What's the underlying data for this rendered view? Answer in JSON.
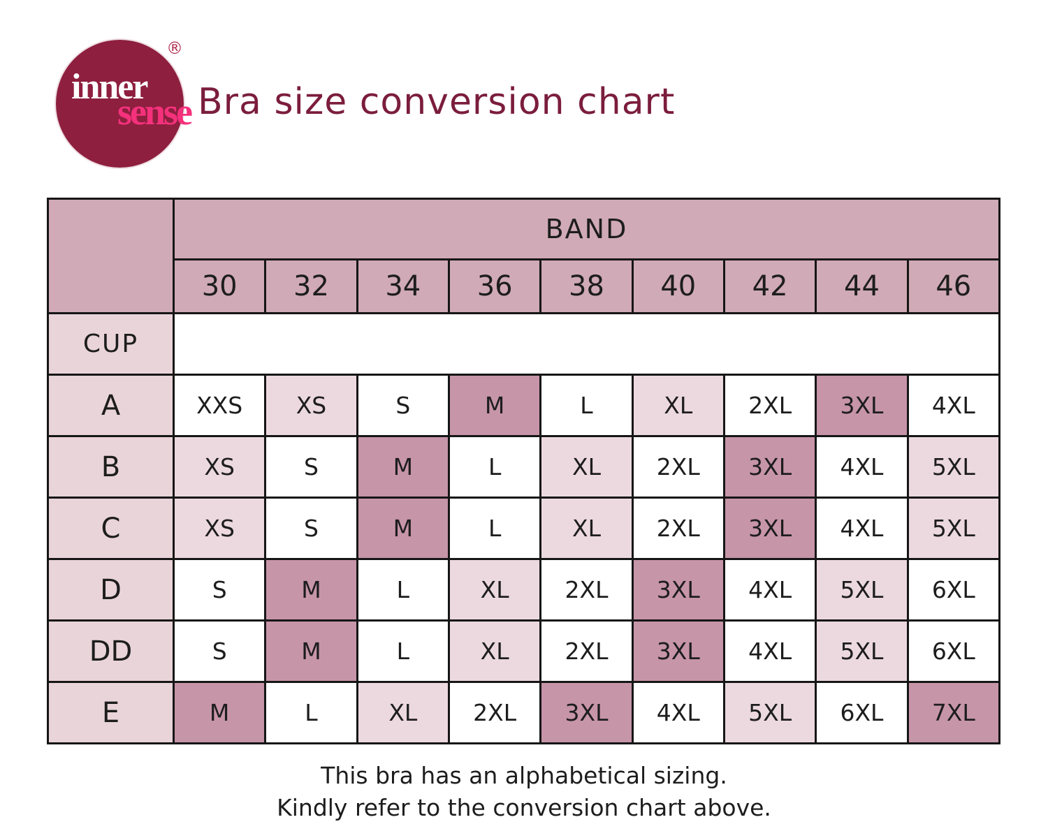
{
  "colors": {
    "header_pink": "#d0aab6",
    "dark_pink": "#c795a8",
    "light_pink": "#ecd9df",
    "lefthead_pink": "#e9d4da",
    "border_black": "#161616",
    "maroon": "#7b1d3c",
    "logo_burgundy": "#8e1f3f",
    "logo_pink": "#f5317c",
    "text_black": "#1d1d1d"
  },
  "logo": {
    "word_top": "inner",
    "word_bottom": "sense",
    "registered_mark": "®"
  },
  "header": {
    "title": "Bra size conversion chart"
  },
  "chart_data": {
    "type": "table",
    "title": "Bra size conversion chart",
    "band_header": "BAND",
    "cup_header": "CUP",
    "bands": [
      "30",
      "32",
      "34",
      "36",
      "38",
      "40",
      "42",
      "44",
      "46"
    ],
    "rows": [
      {
        "cup": "A",
        "cells": [
          {
            "v": "XXS",
            "shade": "white"
          },
          {
            "v": "XS",
            "shade": "light"
          },
          {
            "v": "S",
            "shade": "white"
          },
          {
            "v": "M",
            "shade": "dark"
          },
          {
            "v": "L",
            "shade": "white"
          },
          {
            "v": "XL",
            "shade": "light"
          },
          {
            "v": "2XL",
            "shade": "white"
          },
          {
            "v": "3XL",
            "shade": "dark"
          },
          {
            "v": "4XL",
            "shade": "white"
          }
        ]
      },
      {
        "cup": "B",
        "cells": [
          {
            "v": "XS",
            "shade": "light"
          },
          {
            "v": "S",
            "shade": "white"
          },
          {
            "v": "M",
            "shade": "dark"
          },
          {
            "v": "L",
            "shade": "white"
          },
          {
            "v": "XL",
            "shade": "light"
          },
          {
            "v": "2XL",
            "shade": "white"
          },
          {
            "v": "3XL",
            "shade": "dark"
          },
          {
            "v": "4XL",
            "shade": "white"
          },
          {
            "v": "5XL",
            "shade": "light"
          }
        ]
      },
      {
        "cup": "C",
        "cells": [
          {
            "v": "XS",
            "shade": "light"
          },
          {
            "v": "S",
            "shade": "white"
          },
          {
            "v": "M",
            "shade": "dark"
          },
          {
            "v": "L",
            "shade": "white"
          },
          {
            "v": "XL",
            "shade": "light"
          },
          {
            "v": "2XL",
            "shade": "white"
          },
          {
            "v": "3XL",
            "shade": "dark"
          },
          {
            "v": "4XL",
            "shade": "white"
          },
          {
            "v": "5XL",
            "shade": "light"
          }
        ]
      },
      {
        "cup": "D",
        "cells": [
          {
            "v": "S",
            "shade": "white"
          },
          {
            "v": "M",
            "shade": "dark"
          },
          {
            "v": "L",
            "shade": "white"
          },
          {
            "v": "XL",
            "shade": "light"
          },
          {
            "v": "2XL",
            "shade": "white"
          },
          {
            "v": "3XL",
            "shade": "dark"
          },
          {
            "v": "4XL",
            "shade": "white"
          },
          {
            "v": "5XL",
            "shade": "light"
          },
          {
            "v": "6XL",
            "shade": "white"
          }
        ]
      },
      {
        "cup": "DD",
        "cells": [
          {
            "v": "S",
            "shade": "white"
          },
          {
            "v": "M",
            "shade": "dark"
          },
          {
            "v": "L",
            "shade": "white"
          },
          {
            "v": "XL",
            "shade": "light"
          },
          {
            "v": "2XL",
            "shade": "white"
          },
          {
            "v": "3XL",
            "shade": "dark"
          },
          {
            "v": "4XL",
            "shade": "white"
          },
          {
            "v": "5XL",
            "shade": "light"
          },
          {
            "v": "6XL",
            "shade": "white"
          }
        ]
      },
      {
        "cup": "E",
        "cells": [
          {
            "v": "M",
            "shade": "dark"
          },
          {
            "v": "L",
            "shade": "white"
          },
          {
            "v": "XL",
            "shade": "light"
          },
          {
            "v": "2XL",
            "shade": "white"
          },
          {
            "v": "3XL",
            "shade": "dark"
          },
          {
            "v": "4XL",
            "shade": "white"
          },
          {
            "v": "5XL",
            "shade": "light"
          },
          {
            "v": "6XL",
            "shade": "white"
          },
          {
            "v": "7XL",
            "shade": "dark"
          }
        ]
      }
    ]
  },
  "footer": {
    "line1": "This bra has an alphabetical sizing.",
    "line2": "Kindly refer to the conversion chart above."
  }
}
